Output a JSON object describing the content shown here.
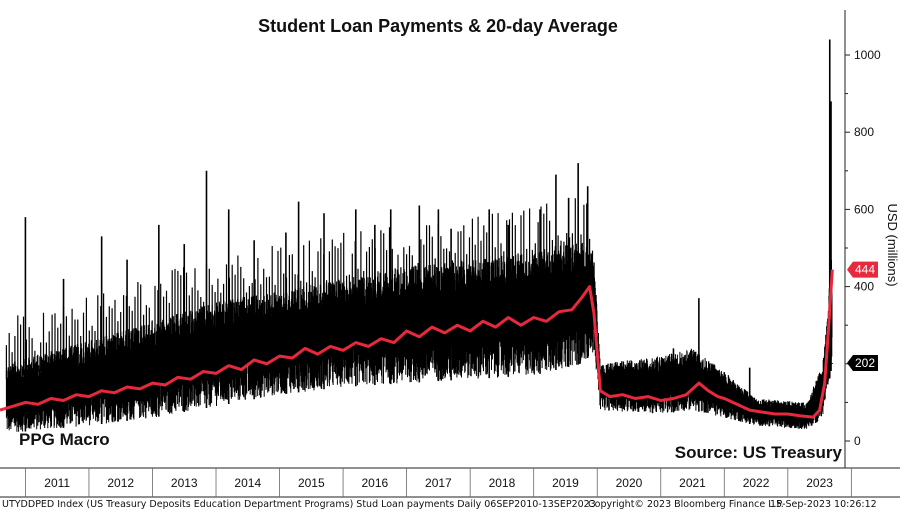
{
  "chart_data": {
    "type": "line",
    "title": "Student Loan Payments & 20-day Average",
    "ylabel": "USD (millions)",
    "ylim": [
      0,
      1100
    ],
    "yticks": [
      0,
      200,
      400,
      600,
      800,
      1000
    ],
    "xlim": [
      2010.6,
      2023.9
    ],
    "x_tick_labels": [
      "2011",
      "2012",
      "2013",
      "2014",
      "2015",
      "2016",
      "2017",
      "2018",
      "2019",
      "2020",
      "2021",
      "2022",
      "2023"
    ],
    "series": [
      {
        "name": "Daily",
        "color": "#000000",
        "style": "daily range band with spikes",
        "band": [
          {
            "x": 2010.7,
            "low": 20,
            "high": 200
          },
          {
            "x": 2012.0,
            "low": 40,
            "high": 260
          },
          {
            "x": 2013.0,
            "low": 60,
            "high": 310
          },
          {
            "x": 2014.0,
            "low": 90,
            "high": 360
          },
          {
            "x": 2015.0,
            "low": 120,
            "high": 390
          },
          {
            "x": 2016.0,
            "low": 140,
            "high": 420
          },
          {
            "x": 2017.0,
            "low": 150,
            "high": 450
          },
          {
            "x": 2018.0,
            "low": 160,
            "high": 470
          },
          {
            "x": 2019.0,
            "low": 170,
            "high": 490
          },
          {
            "x": 2019.75,
            "low": 200,
            "high": 520
          },
          {
            "x": 2019.95,
            "low": 230,
            "high": 480
          },
          {
            "x": 2020.05,
            "low": 80,
            "high": 200
          },
          {
            "x": 2021.0,
            "low": 70,
            "high": 220
          },
          {
            "x": 2021.5,
            "low": 80,
            "high": 240
          },
          {
            "x": 2022.0,
            "low": 60,
            "high": 180
          },
          {
            "x": 2022.5,
            "low": 40,
            "high": 110
          },
          {
            "x": 2023.3,
            "low": 30,
            "high": 100
          },
          {
            "x": 2023.55,
            "low": 60,
            "high": 200
          },
          {
            "x": 2023.7,
            "low": 200,
            "high": 500
          }
        ],
        "spikes": [
          [
            2011.0,
            580
          ],
          [
            2011.6,
            420
          ],
          [
            2012.2,
            530
          ],
          [
            2012.6,
            470
          ],
          [
            2013.1,
            560
          ],
          [
            2013.5,
            510
          ],
          [
            2013.85,
            700
          ],
          [
            2014.2,
            600
          ],
          [
            2014.6,
            520
          ],
          [
            2015.1,
            540
          ],
          [
            2015.3,
            620
          ],
          [
            2015.7,
            590
          ],
          [
            2016.2,
            600
          ],
          [
            2016.5,
            560
          ],
          [
            2016.75,
            600
          ],
          [
            2017.2,
            610
          ],
          [
            2017.5,
            600
          ],
          [
            2017.7,
            550
          ],
          [
            2018.3,
            600
          ],
          [
            2018.6,
            560
          ],
          [
            2019.1,
            600
          ],
          [
            2019.35,
            690
          ],
          [
            2019.55,
            630
          ],
          [
            2019.7,
            720
          ],
          [
            2019.85,
            660
          ],
          [
            2021.2,
            240
          ],
          [
            2021.6,
            370
          ],
          [
            2022.4,
            190
          ],
          [
            2023.45,
            120
          ],
          [
            2023.66,
            1040
          ],
          [
            2023.68,
            880
          ],
          [
            2023.7,
            202
          ]
        ]
      },
      {
        "name": "20-day Average",
        "color": "#e8283c",
        "points": [
          [
            2010.6,
            80
          ],
          [
            2010.8,
            90
          ],
          [
            2011.0,
            100
          ],
          [
            2011.2,
            95
          ],
          [
            2011.4,
            110
          ],
          [
            2011.6,
            105
          ],
          [
            2011.8,
            120
          ],
          [
            2012.0,
            115
          ],
          [
            2012.2,
            130
          ],
          [
            2012.4,
            125
          ],
          [
            2012.6,
            140
          ],
          [
            2012.8,
            135
          ],
          [
            2013.0,
            150
          ],
          [
            2013.2,
            145
          ],
          [
            2013.4,
            165
          ],
          [
            2013.6,
            160
          ],
          [
            2013.8,
            180
          ],
          [
            2014.0,
            175
          ],
          [
            2014.2,
            195
          ],
          [
            2014.4,
            185
          ],
          [
            2014.6,
            210
          ],
          [
            2014.8,
            200
          ],
          [
            2015.0,
            220
          ],
          [
            2015.2,
            215
          ],
          [
            2015.4,
            240
          ],
          [
            2015.6,
            225
          ],
          [
            2015.8,
            245
          ],
          [
            2016.0,
            235
          ],
          [
            2016.2,
            255
          ],
          [
            2016.4,
            245
          ],
          [
            2016.6,
            265
          ],
          [
            2016.8,
            255
          ],
          [
            2017.0,
            285
          ],
          [
            2017.2,
            270
          ],
          [
            2017.4,
            295
          ],
          [
            2017.6,
            280
          ],
          [
            2017.8,
            300
          ],
          [
            2018.0,
            285
          ],
          [
            2018.2,
            310
          ],
          [
            2018.4,
            295
          ],
          [
            2018.6,
            320
          ],
          [
            2018.8,
            300
          ],
          [
            2019.0,
            320
          ],
          [
            2019.2,
            310
          ],
          [
            2019.4,
            335
          ],
          [
            2019.6,
            340
          ],
          [
            2019.75,
            370
          ],
          [
            2019.88,
            400
          ],
          [
            2019.95,
            330
          ],
          [
            2020.05,
            130
          ],
          [
            2020.2,
            115
          ],
          [
            2020.4,
            120
          ],
          [
            2020.6,
            110
          ],
          [
            2020.8,
            115
          ],
          [
            2021.0,
            105
          ],
          [
            2021.2,
            110
          ],
          [
            2021.4,
            120
          ],
          [
            2021.6,
            150
          ],
          [
            2021.75,
            130
          ],
          [
            2021.9,
            115
          ],
          [
            2022.0,
            110
          ],
          [
            2022.2,
            95
          ],
          [
            2022.4,
            80
          ],
          [
            2022.6,
            75
          ],
          [
            2022.8,
            70
          ],
          [
            2023.0,
            70
          ],
          [
            2023.2,
            65
          ],
          [
            2023.4,
            62
          ],
          [
            2023.5,
            80
          ],
          [
            2023.58,
            150
          ],
          [
            2023.64,
            290
          ],
          [
            2023.7,
            444
          ]
        ]
      }
    ],
    "last_value_labels": [
      {
        "series": "20-day Average",
        "value": 444,
        "text": "444",
        "bg": "#e8283c",
        "fg": "#ffffff"
      },
      {
        "series": "Daily",
        "value": 202,
        "text": "202",
        "bg": "#000000",
        "fg": "#ffffff"
      }
    ],
    "grid": false,
    "legend": "none"
  },
  "watermark": "PPG Macro",
  "source_note": "Source: US Treasury",
  "footer": {
    "left": "UTYDDPED Index (US Treasury Deposits Education Department Programs) Stud Loan payments  Daily 06SEP2010-13SEP2023",
    "middle": "Copyright© 2023 Bloomberg Finance L.P.",
    "right": "15-Sep-2023 10:26:12"
  }
}
